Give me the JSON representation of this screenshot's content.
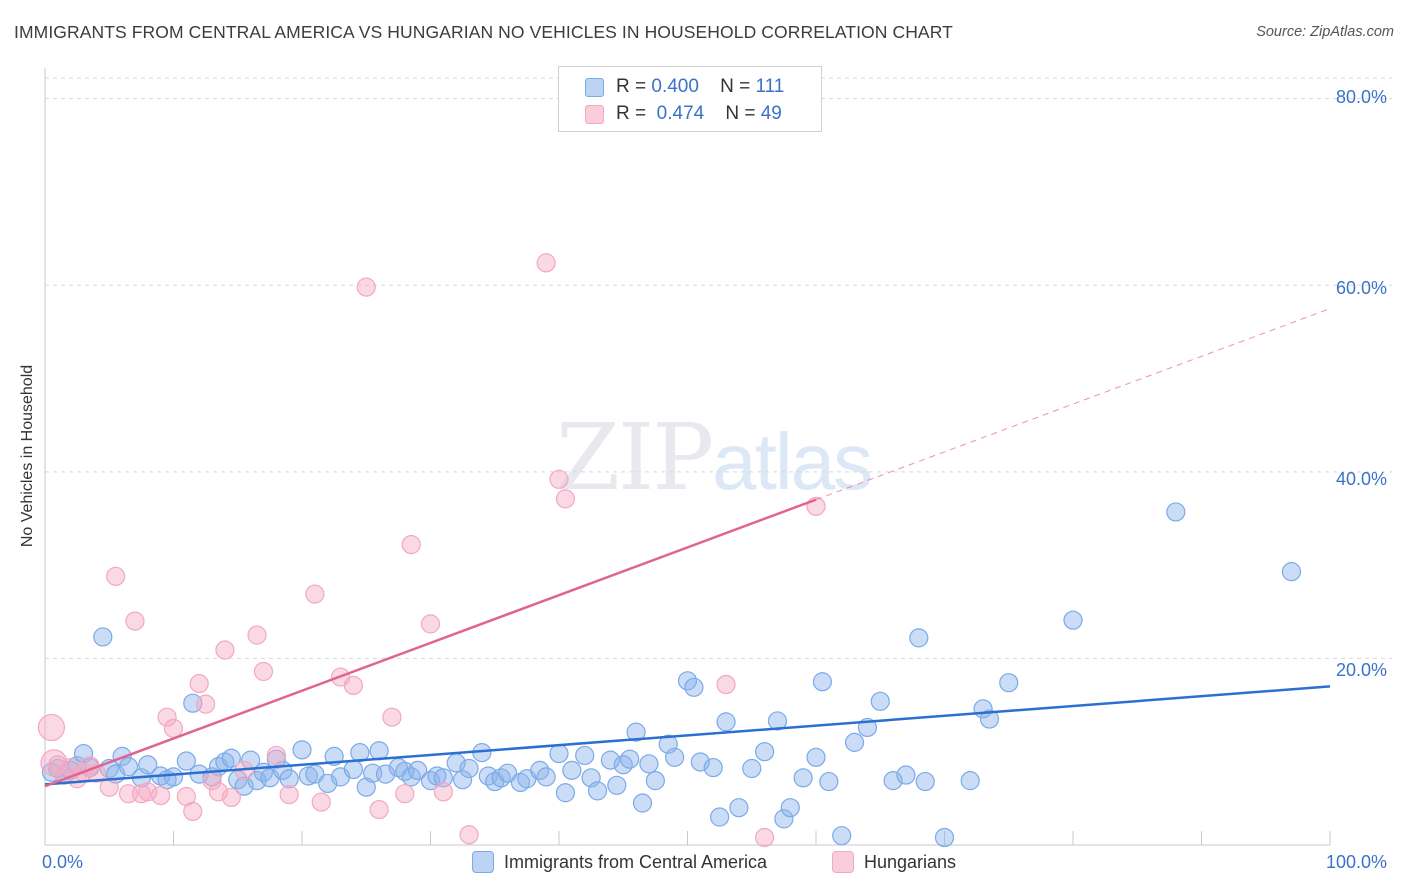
{
  "header": {
    "title": "IMMIGRANTS FROM CENTRAL AMERICA VS HUNGARIAN NO VEHICLES IN HOUSEHOLD CORRELATION CHART",
    "source": "Source: ZipAtlas.com"
  },
  "watermark": {
    "zip": "ZIP",
    "atlas": "atlas"
  },
  "legend": {
    "rows": [
      {
        "r_label": "R =",
        "r_value": "0.400",
        "n_label": "N =",
        "n_value": "111"
      },
      {
        "r_label": "R =",
        "r_value": "0.474",
        "n_label": "N =",
        "n_value": "49"
      }
    ]
  },
  "chart_data": {
    "type": "scatter",
    "title": "IMMIGRANTS FROM CENTRAL AMERICA VS HUNGARIAN NO VEHICLES IN HOUSEHOLD CORRELATION CHART",
    "xlabel": "",
    "ylabel": "No Vehicles in Household",
    "xlim": [
      0,
      100
    ],
    "ylim": [
      0,
      82
    ],
    "x_tick_labels": [
      "0.0%",
      "100.0%"
    ],
    "y_tick_labels": [
      "20.0%",
      "40.0%",
      "60.0%",
      "80.0%"
    ],
    "y_ticks": [
      20,
      40,
      60,
      80
    ],
    "grid": "horizontal dashed",
    "legend_position": "top-center",
    "series": [
      {
        "name": "Immigrants from Central America",
        "color": "#7aaae8",
        "line_color": "#2a6fd1",
        "trend": {
          "x": [
            0,
            100
          ],
          "y": [
            6.5,
            17.0
          ],
          "dashed_to": null
        },
        "points": [
          [
            0.5,
            7.8
          ],
          [
            1.0,
            8.2
          ],
          [
            1.5,
            7.5
          ],
          [
            2.0,
            8.0
          ],
          [
            2.5,
            8.5
          ],
          [
            3.0,
            9.8
          ],
          [
            3.5,
            8.3
          ],
          [
            4.5,
            22.3
          ],
          [
            5.0,
            8.2
          ],
          [
            5.5,
            7.6
          ],
          [
            6.0,
            9.5
          ],
          [
            6.5,
            8.4
          ],
          [
            7.5,
            7.2
          ],
          [
            8.0,
            8.6
          ],
          [
            9.0,
            7.4
          ],
          [
            9.5,
            7.0
          ],
          [
            10.0,
            7.3
          ],
          [
            11.0,
            9.0
          ],
          [
            11.5,
            15.2
          ],
          [
            12.0,
            7.6
          ],
          [
            13.0,
            7.3
          ],
          [
            13.5,
            8.4
          ],
          [
            14.0,
            8.9
          ],
          [
            14.5,
            9.3
          ],
          [
            15.0,
            7.0
          ],
          [
            15.5,
            6.3
          ],
          [
            16.0,
            9.1
          ],
          [
            16.5,
            6.9
          ],
          [
            17.0,
            7.8
          ],
          [
            17.5,
            7.2
          ],
          [
            18.0,
            9.2
          ],
          [
            18.5,
            8.0
          ],
          [
            19.0,
            7.1
          ],
          [
            20.0,
            10.2
          ],
          [
            20.5,
            7.4
          ],
          [
            21.0,
            7.6
          ],
          [
            22.0,
            6.6
          ],
          [
            22.5,
            9.5
          ],
          [
            23.0,
            7.3
          ],
          [
            24.0,
            8.1
          ],
          [
            24.5,
            9.9
          ],
          [
            25.0,
            6.2
          ],
          [
            25.5,
            7.7
          ],
          [
            26.0,
            10.1
          ],
          [
            26.5,
            7.6
          ],
          [
            27.5,
            8.3
          ],
          [
            28.0,
            7.9
          ],
          [
            28.5,
            7.3
          ],
          [
            29.0,
            8.0
          ],
          [
            30.0,
            6.9
          ],
          [
            30.5,
            7.4
          ],
          [
            31.0,
            7.2
          ],
          [
            32.0,
            8.8
          ],
          [
            32.5,
            7.0
          ],
          [
            33.0,
            8.2
          ],
          [
            34.0,
            9.9
          ],
          [
            34.5,
            7.4
          ],
          [
            35.0,
            6.8
          ],
          [
            35.5,
            7.2
          ],
          [
            36.0,
            7.7
          ],
          [
            37.0,
            6.7
          ],
          [
            37.5,
            7.1
          ],
          [
            38.5,
            8.0
          ],
          [
            39.0,
            7.3
          ],
          [
            40.0,
            9.8
          ],
          [
            40.5,
            5.6
          ],
          [
            41.0,
            8.0
          ],
          [
            42.0,
            9.6
          ],
          [
            42.5,
            7.2
          ],
          [
            43.0,
            5.8
          ],
          [
            44.0,
            9.1
          ],
          [
            44.5,
            6.4
          ],
          [
            45.0,
            8.6
          ],
          [
            45.5,
            9.2
          ],
          [
            46.0,
            12.1
          ],
          [
            46.5,
            4.5
          ],
          [
            47.0,
            8.7
          ],
          [
            47.5,
            6.9
          ],
          [
            48.5,
            10.8
          ],
          [
            49.0,
            9.4
          ],
          [
            50.0,
            17.6
          ],
          [
            50.5,
            16.9
          ],
          [
            51.0,
            8.9
          ],
          [
            52.0,
            8.3
          ],
          [
            52.5,
            3.0
          ],
          [
            53.0,
            13.2
          ],
          [
            54.0,
            4.0
          ],
          [
            55.0,
            8.2
          ],
          [
            56.0,
            10.0
          ],
          [
            57.0,
            13.3
          ],
          [
            57.5,
            2.8
          ],
          [
            58.0,
            4.0
          ],
          [
            59.0,
            7.2
          ],
          [
            60.0,
            9.4
          ],
          [
            60.5,
            17.5
          ],
          [
            61.0,
            6.8
          ],
          [
            62.0,
            1.0
          ],
          [
            63.0,
            11.0
          ],
          [
            64.0,
            12.6
          ],
          [
            65.0,
            15.4
          ],
          [
            66.0,
            6.9
          ],
          [
            67.0,
            7.5
          ],
          [
            68.0,
            22.2
          ],
          [
            68.5,
            6.8
          ],
          [
            70.0,
            0.8
          ],
          [
            72.0,
            6.9
          ],
          [
            73.0,
            14.6
          ],
          [
            73.5,
            13.5
          ],
          [
            75.0,
            17.4
          ],
          [
            80.0,
            24.1
          ],
          [
            88.0,
            35.7
          ],
          [
            97.0,
            29.3
          ]
        ]
      },
      {
        "name": "Hungarians",
        "color": "#f2a8c0",
        "line_color": "#e0648f",
        "trend": {
          "x": [
            0,
            100
          ],
          "y": [
            6.3,
            57.5
          ],
          "solid_until": 60
        },
        "points": [
          [
            0.5,
            12.6
          ],
          [
            0.7,
            8.8
          ],
          [
            1.0,
            8.6
          ],
          [
            1.5,
            7.6
          ],
          [
            2.0,
            8.3
          ],
          [
            2.5,
            7.1
          ],
          [
            3.0,
            7.8
          ],
          [
            3.5,
            8.5
          ],
          [
            4.0,
            7.7
          ],
          [
            5.0,
            6.2
          ],
          [
            5.5,
            28.8
          ],
          [
            6.5,
            5.5
          ],
          [
            7.0,
            24.0
          ],
          [
            7.5,
            5.5
          ],
          [
            8.0,
            5.7
          ],
          [
            9.0,
            5.3
          ],
          [
            9.5,
            13.7
          ],
          [
            10.0,
            12.5
          ],
          [
            11.0,
            5.2
          ],
          [
            11.5,
            3.6
          ],
          [
            12.0,
            17.3
          ],
          [
            12.5,
            15.1
          ],
          [
            13.0,
            6.9
          ],
          [
            13.5,
            5.7
          ],
          [
            14.0,
            20.9
          ],
          [
            14.5,
            5.1
          ],
          [
            15.5,
            8.0
          ],
          [
            16.5,
            22.5
          ],
          [
            17.0,
            18.6
          ],
          [
            18.0,
            9.6
          ],
          [
            19.0,
            5.4
          ],
          [
            21.0,
            26.9
          ],
          [
            21.5,
            4.6
          ],
          [
            23.0,
            18.0
          ],
          [
            24.0,
            17.1
          ],
          [
            25.0,
            59.8
          ],
          [
            26.0,
            3.8
          ],
          [
            27.0,
            13.7
          ],
          [
            28.5,
            32.2
          ],
          [
            28.0,
            5.5
          ],
          [
            30.0,
            23.7
          ],
          [
            31.0,
            5.7
          ],
          [
            33.0,
            1.1
          ],
          [
            39.0,
            62.4
          ],
          [
            40.0,
            39.2
          ],
          [
            40.5,
            37.1
          ],
          [
            53.0,
            17.2
          ],
          [
            56.0,
            0.8
          ],
          [
            60.0,
            36.3
          ]
        ]
      }
    ]
  },
  "bottom_legend": {
    "items": [
      {
        "label": "Immigrants from Central America"
      },
      {
        "label": "Hungarians"
      }
    ]
  }
}
